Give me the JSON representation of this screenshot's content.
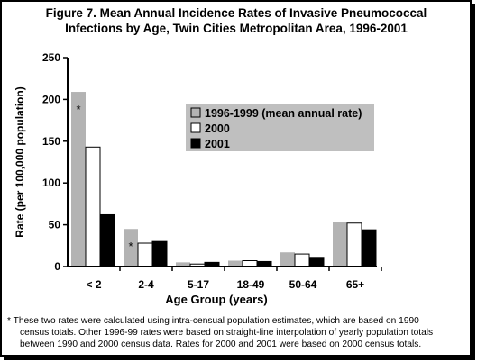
{
  "colors": {
    "s1": "#b3b3b3",
    "s2": "#ffffff",
    "s3": "#000000",
    "legend_bg": "#bfbfbf"
  },
  "chart_data": {
    "type": "bar",
    "title_line1": "Figure 7.  Mean Annual Incidence Rates of Invasive Pneumococcal",
    "title_line2": "Infections by Age, Twin Cities Metropolitan Area, 1996-2001",
    "xlabel": "Age Group (years)",
    "ylabel": "Rate (per 100,000 population)",
    "ylim": [
      0,
      250
    ],
    "yticks": [
      "0",
      "50",
      "100",
      "150",
      "200",
      "250"
    ],
    "categories": [
      "< 2",
      "2-4",
      "5-17",
      "18-49",
      "50-64",
      "65+"
    ],
    "series": [
      {
        "name": "1996-1999 (mean annual rate)",
        "values": [
          209,
          45,
          5,
          7,
          17,
          53
        ]
      },
      {
        "name": "2000",
        "values": [
          143,
          28,
          3,
          7,
          15,
          52
        ]
      },
      {
        "name": "2001",
        "values": [
          62,
          30,
          5,
          6,
          11,
          44
        ]
      }
    ],
    "annotation_marker": "*",
    "annotated_bars": [
      {
        "category": 0,
        "series": 0
      },
      {
        "category": 1,
        "series": 0
      }
    ],
    "legend_position": "right",
    "grid": false
  },
  "footnote": {
    "line1": "* These two rates were calculated using intra-censual  population estimates, which are based on 1990",
    "line2": "census totals.  Other 1996-99 rates were based on straight-line interpolation of yearly population totals",
    "line3": "between 1990 and 2000 census data.  Rates for 2000 and 2001 were based on 2000 census totals."
  }
}
